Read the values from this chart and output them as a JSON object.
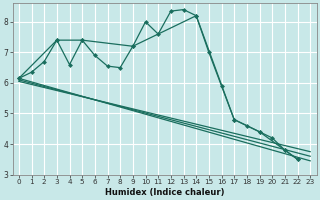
{
  "xlabel": "Humidex (Indice chaleur)",
  "bg_color": "#c8e8e8",
  "grid_color": "#ffffff",
  "line_color": "#1a6e5e",
  "xlim": [
    -0.5,
    23.5
  ],
  "ylim": [
    3.0,
    8.6
  ],
  "yticks": [
    3,
    4,
    5,
    6,
    7,
    8
  ],
  "xticks": [
    0,
    1,
    2,
    3,
    4,
    5,
    6,
    7,
    8,
    9,
    10,
    11,
    12,
    13,
    14,
    15,
    16,
    17,
    18,
    19,
    20,
    21,
    22,
    23
  ],
  "main_x": [
    0,
    1,
    2,
    3,
    4,
    5,
    6,
    7,
    8,
    9,
    10,
    11,
    12,
    13,
    14,
    15,
    16,
    17,
    18,
    19,
    20,
    21,
    22
  ],
  "main_y": [
    6.15,
    6.35,
    6.7,
    7.4,
    6.6,
    7.4,
    6.9,
    6.55,
    6.5,
    7.2,
    8.0,
    7.6,
    8.35,
    8.4,
    8.2,
    7.0,
    5.9,
    4.8,
    4.6,
    4.4,
    4.2,
    3.8,
    3.5
  ],
  "line1_x": [
    0,
    23
  ],
  "line1_y": [
    6.15,
    3.45
  ],
  "line2_x": [
    0,
    23
  ],
  "line2_y": [
    6.1,
    3.6
  ],
  "line3_x": [
    0,
    23
  ],
  "line3_y": [
    6.05,
    3.75
  ],
  "sub_x": [
    0,
    3,
    5,
    9,
    14,
    17,
    19,
    21,
    22
  ],
  "sub_y": [
    6.15,
    7.4,
    7.4,
    7.2,
    8.2,
    4.8,
    4.4,
    3.8,
    3.5
  ]
}
